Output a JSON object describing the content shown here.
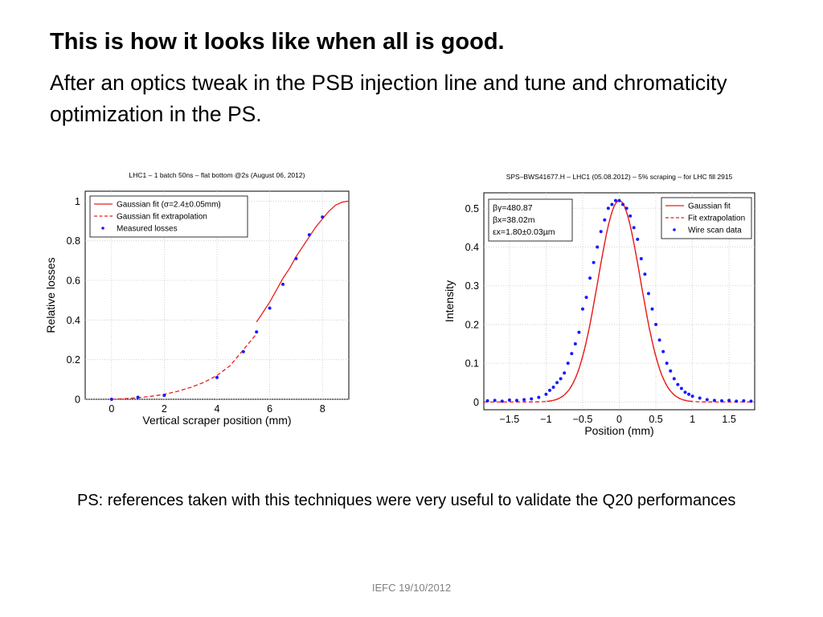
{
  "slide": {
    "title": "This is how it looks like when all is good.",
    "subtitle": "After an optics tweak in the PSB injection line and tune and chromaticity optimization in the PS.",
    "note": "PS: references taken with this techniques were very useful to validate the Q20 performances",
    "footer": "IEFC 19/10/2012"
  },
  "colors": {
    "fit": "#e8201e",
    "data": "#1a1aff"
  },
  "chart_data": [
    {
      "type": "line",
      "title": "LHC1 – 1 batch 50ns – flat bottom @2s (August 06, 2012)",
      "xlabel": "Vertical scraper position (mm)",
      "ylabel": "Relative losses",
      "xlim": [
        -1,
        9
      ],
      "ylim": [
        0,
        1.05
      ],
      "xticks": [
        0,
        2,
        4,
        6,
        8
      ],
      "yticks": [
        0,
        0.2,
        0.4,
        0.6,
        0.8,
        1
      ],
      "grid": true,
      "legend": "top-left",
      "legend_entries": [
        "Gaussian fit (σ=2.4±0.05mm)",
        "Gaussian fit extrapolation",
        "Measured losses"
      ],
      "series": [
        {
          "name": "Gaussian fit (σ=2.4±0.05mm)",
          "style": "solid",
          "x": [
            5.5,
            5.75,
            6,
            6.25,
            6.5,
            6.75,
            7,
            7.25,
            7.5,
            7.75,
            8,
            8.25,
            8.5,
            8.75,
            9
          ],
          "y": [
            0.39,
            0.44,
            0.49,
            0.55,
            0.61,
            0.66,
            0.72,
            0.77,
            0.82,
            0.87,
            0.91,
            0.95,
            0.98,
            0.995,
            1.0
          ]
        },
        {
          "name": "Gaussian fit extrapolation",
          "style": "dashed",
          "x": [
            0,
            0.5,
            1,
            1.5,
            2,
            2.5,
            3,
            3.5,
            4,
            4.5,
            5,
            5.5
          ],
          "y": [
            0.0,
            0.003,
            0.008,
            0.015,
            0.025,
            0.04,
            0.06,
            0.085,
            0.12,
            0.17,
            0.25,
            0.33
          ]
        },
        {
          "name": "Measured losses",
          "style": "points",
          "x": [
            0,
            1,
            2,
            4,
            5,
            5.5,
            6,
            6.5,
            7,
            7.5,
            8
          ],
          "y": [
            0.0,
            0.01,
            0.02,
            0.11,
            0.24,
            0.34,
            0.46,
            0.58,
            0.71,
            0.83,
            0.92
          ]
        }
      ]
    },
    {
      "type": "scatter",
      "title": "SPS–BWS41677.H – LHC1 (05.08.2012)  – 5% scraping – for LHC fill 2915",
      "xlabel": "Position (mm)",
      "ylabel": "Intensity",
      "xlim": [
        -1.85,
        1.85
      ],
      "ylim": [
        -0.02,
        0.54
      ],
      "xticks": [
        -1.5,
        -1,
        -0.5,
        0,
        0.5,
        1,
        1.5
      ],
      "xtick_labels": [
        "−1.5",
        "−1",
        "−0.5",
        "0",
        "0.5",
        "1",
        "1.5"
      ],
      "yticks": [
        0,
        0.1,
        0.2,
        0.3,
        0.4,
        0.5
      ],
      "grid": true,
      "legend": "top-right",
      "legend_entries": [
        "Gaussian fit",
        "Fit extrapolation",
        "Wire scan data"
      ],
      "annotation": [
        "βγ=480.87",
        "βx=38.02m",
        "εx=1.80±0.03µm"
      ],
      "gaussian": {
        "amplitude": 0.52,
        "sigma": 0.29,
        "center": 0
      },
      "series": [
        {
          "name": "Gaussian fit",
          "style": "solid"
        },
        {
          "name": "Fit extrapolation",
          "style": "dashed"
        },
        {
          "name": "Wire scan data",
          "style": "points",
          "x": [
            -1.8,
            -1.7,
            -1.6,
            -1.5,
            -1.4,
            -1.3,
            -1.2,
            -1.1,
            -1.0,
            -0.95,
            -0.9,
            -0.85,
            -0.8,
            -0.75,
            -0.7,
            -0.65,
            -0.6,
            -0.55,
            -0.5,
            -0.45,
            -0.4,
            -0.35,
            -0.3,
            -0.25,
            -0.2,
            -0.15,
            -0.1,
            -0.05,
            0.0,
            0.05,
            0.1,
            0.15,
            0.2,
            0.25,
            0.3,
            0.35,
            0.4,
            0.45,
            0.5,
            0.55,
            0.6,
            0.65,
            0.7,
            0.75,
            0.8,
            0.85,
            0.9,
            0.95,
            1.0,
            1.1,
            1.2,
            1.3,
            1.4,
            1.5,
            1.6,
            1.7,
            1.8
          ],
          "y": [
            0.003,
            0.004,
            0.002,
            0.005,
            0.004,
            0.006,
            0.008,
            0.012,
            0.02,
            0.03,
            0.038,
            0.05,
            0.06,
            0.075,
            0.1,
            0.125,
            0.15,
            0.18,
            0.24,
            0.27,
            0.32,
            0.36,
            0.4,
            0.44,
            0.47,
            0.5,
            0.51,
            0.52,
            0.52,
            0.51,
            0.5,
            0.48,
            0.45,
            0.42,
            0.37,
            0.33,
            0.28,
            0.24,
            0.2,
            0.16,
            0.13,
            0.1,
            0.08,
            0.06,
            0.045,
            0.035,
            0.025,
            0.02,
            0.015,
            0.01,
            0.006,
            0.004,
            0.003,
            0.004,
            0.002,
            0.003,
            0.002
          ]
        }
      ]
    }
  ]
}
